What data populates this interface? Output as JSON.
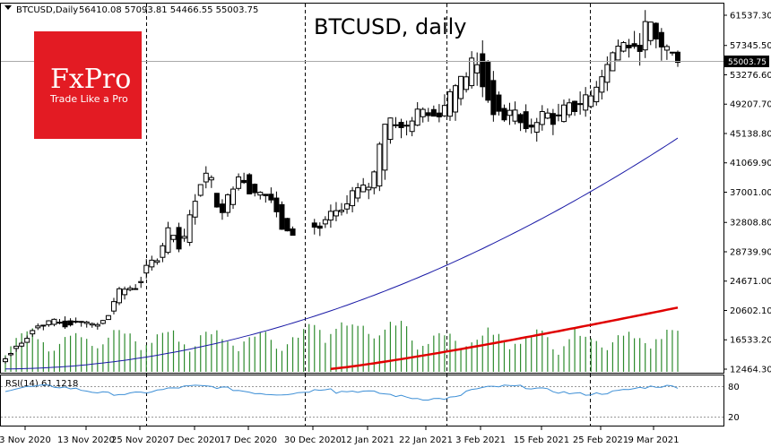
{
  "header": {
    "symbol": "BTCUSD,Daily",
    "ohlc": "56410.08 57093.81 54466.55 55003.75"
  },
  "chart_title": "BTCUSD, daily",
  "logo": {
    "brand": "FxPro",
    "tagline": "Trade Like a Pro",
    "color": "#e31b23"
  },
  "current_price": "55003.75",
  "rsi_label": "RSI(14) 61.1218",
  "colors": {
    "bull_candle": "#ffffff",
    "bear_candle": "#000000",
    "ma_fast": "#1a1aa6",
    "ma_slow": "#e00000",
    "volume": "#2e8b2e",
    "rsi": "#3d8fd6",
    "grid_dashed": "#000000"
  },
  "chart_data": {
    "type": "candlestick",
    "title": "BTCUSD, daily",
    "ylim": [
      12464.3,
      63000
    ],
    "y_ticks": [
      "61537.30",
      "57345.50",
      "53276.60",
      "49207.70",
      "45138.80",
      "41069.90",
      "37001.00",
      "32808.80",
      "28739.90",
      "24671.00",
      "20602.10",
      "16533.20",
      "12464.30"
    ],
    "x_labels": [
      "3 Nov 2020",
      "13 Nov 2020",
      "25 Nov 2020",
      "7 Dec 2020",
      "17 Dec 2020",
      "30 Dec 2020",
      "12 Jan 2021",
      "22 Jan 2021",
      "3 Feb 2021",
      "15 Feb 2021",
      "25 Feb 2021",
      "9 Mar 2021"
    ],
    "candle_anchors": [
      [
        13500,
        13900
      ],
      [
        15300,
        15600
      ],
      [
        15900,
        16300
      ],
      [
        18100,
        18600
      ],
      [
        18600,
        18800
      ],
      [
        18700,
        19200
      ],
      [
        19200,
        18400
      ],
      [
        19100,
        19300
      ],
      [
        18800,
        19000
      ],
      [
        18400,
        18600
      ],
      [
        19100,
        19500
      ],
      [
        21300,
        23200
      ],
      [
        23400,
        23700
      ],
      [
        23700,
        23800
      ],
      [
        26200,
        27000
      ],
      [
        27400,
        28000
      ],
      [
        28700,
        32200
      ],
      [
        32200,
        29000
      ],
      [
        29400,
        33000
      ],
      [
        36000,
        38000
      ],
      [
        39500,
        40000
      ],
      [
        36000,
        33800
      ],
      [
        33800,
        36800
      ],
      [
        38000,
        40000
      ],
      [
        39500,
        36600
      ],
      [
        36600,
        37000
      ],
      [
        36800,
        36300
      ],
      [
        35800,
        32300
      ],
      [
        32200,
        30800
      ],
      [
        30800,
        33300
      ],
      [
        33000,
        32100
      ],
      [
        32200,
        31800
      ],
      [
        33200,
        34300
      ],
      [
        34300,
        34500
      ],
      [
        35000,
        37000
      ],
      [
        37000,
        37500
      ],
      [
        37500,
        38000
      ],
      [
        38000,
        46400
      ],
      [
        46000,
        47500
      ],
      [
        46800,
        45300
      ],
      [
        45300,
        47500
      ],
      [
        47500,
        48500
      ],
      [
        48500,
        47500
      ],
      [
        47600,
        48500
      ],
      [
        47500,
        52500
      ],
      [
        51000,
        52500
      ],
      [
        52000,
        56000
      ],
      [
        57000,
        51000
      ],
      [
        52000,
        48000
      ],
      [
        48500,
        47000
      ],
      [
        46800,
        48500
      ],
      [
        48500,
        45000
      ],
      [
        45000,
        47000
      ],
      [
        47000,
        48200
      ],
      [
        48200,
        46500
      ],
      [
        46500,
        49000
      ],
      [
        50000,
        48500
      ],
      [
        48300,
        50600
      ],
      [
        49500,
        51500
      ],
      [
        52000,
        55000
      ],
      [
        55000,
        57200
      ],
      [
        57300,
        57700
      ],
      [
        57700,
        56000
      ],
      [
        56500,
        61000
      ],
      [
        61000,
        57600
      ],
      [
        56400,
        57000
      ],
      [
        56410.08,
        55003.75
      ]
    ],
    "rsi": {
      "label": "RSI(14) 61.1218",
      "levels": [
        80,
        20
      ],
      "last": 61.1218
    },
    "moving_averages": [
      "fast (blue)",
      "slow (red)"
    ]
  }
}
